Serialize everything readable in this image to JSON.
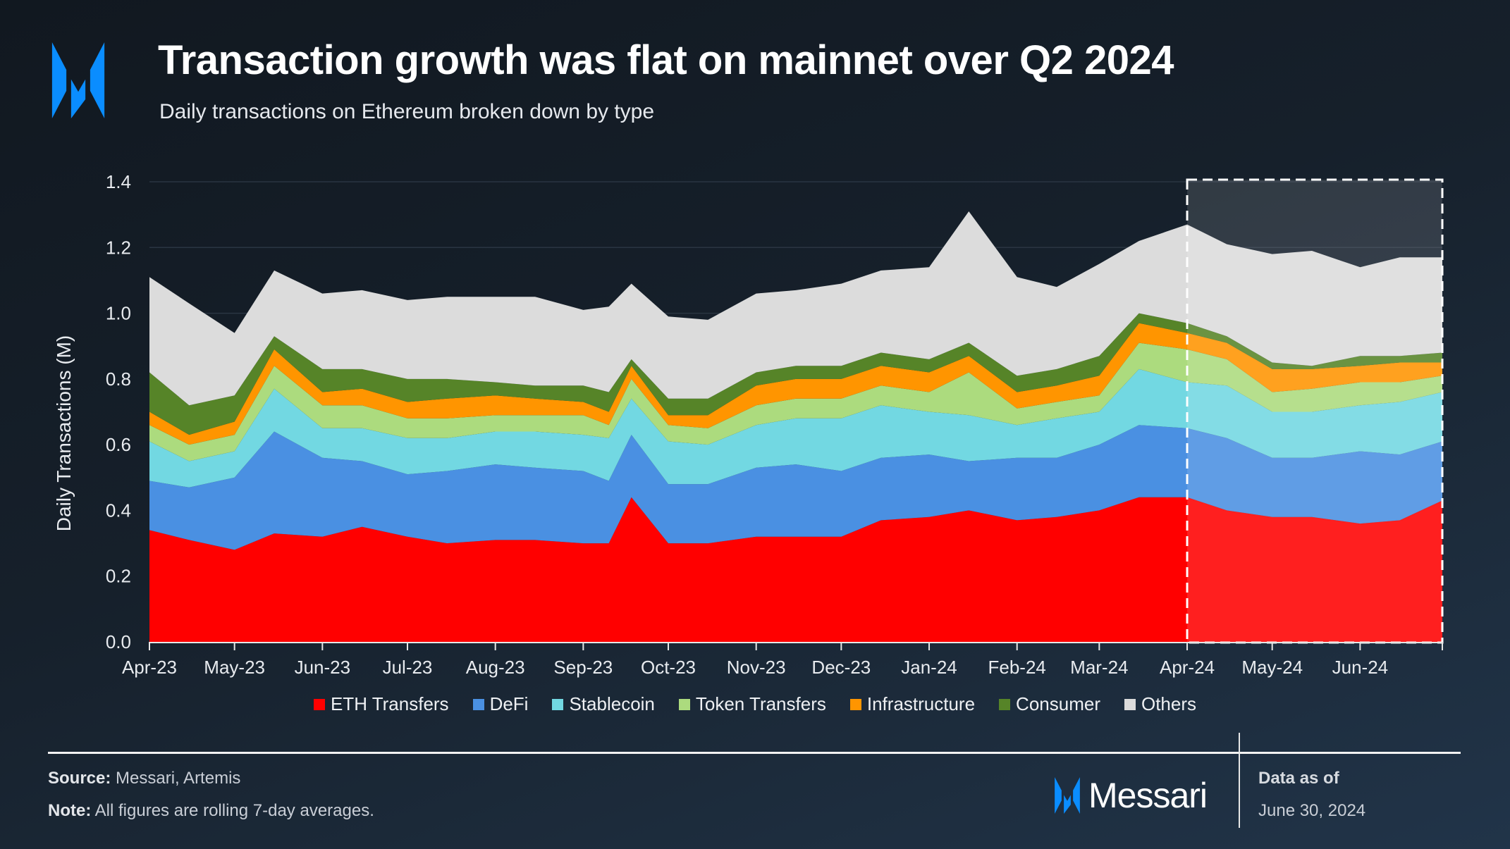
{
  "header": {
    "title": "Transaction growth was flat on mainnet over Q2 2024",
    "subtitle": "Daily transactions on Ethereum broken down by type",
    "logo_color": "#0a8dff"
  },
  "chart_data": {
    "type": "area",
    "stacked": true,
    "title": "Transaction growth was flat on mainnet over Q2 2024",
    "subtitle": "Daily transactions on Ethereum broken down by type",
    "xlabel": "",
    "ylabel": "Daily Transactions (M)",
    "ylim": [
      0,
      1.4
    ],
    "xlim": [
      "2023-04-01",
      "2024-06-30"
    ],
    "yticks": [
      "0.0",
      "0.2",
      "0.4",
      "0.6",
      "0.8",
      "1.0",
      "1.2",
      "1.4"
    ],
    "xticks": [
      {
        "label": "Apr-23",
        "date": "2023-04-01"
      },
      {
        "label": "May-23",
        "date": "2023-05-01"
      },
      {
        "label": "Jun-23",
        "date": "2023-06-01"
      },
      {
        "label": "Jul-23",
        "date": "2023-07-01"
      },
      {
        "label": "Aug-23",
        "date": "2023-08-01"
      },
      {
        "label": "Sep-23",
        "date": "2023-09-01"
      },
      {
        "label": "Oct-23",
        "date": "2023-10-01"
      },
      {
        "label": "Nov-23",
        "date": "2023-11-01"
      },
      {
        "label": "Dec-23",
        "date": "2023-12-01"
      },
      {
        "label": "Jan-24",
        "date": "2024-01-01"
      },
      {
        "label": "Feb-24",
        "date": "2024-02-01"
      },
      {
        "label": "Mar-24",
        "date": "2024-03-01"
      },
      {
        "label": "Apr-24",
        "date": "2024-04-01"
      },
      {
        "label": "May-24",
        "date": "2024-05-01"
      },
      {
        "label": "Jun-24",
        "date": "2024-06-01"
      }
    ],
    "grid": true,
    "legend_position": "bottom",
    "highlight_range": [
      "2024-04-01",
      "2024-06-30"
    ],
    "x": [
      "2023-04-01",
      "2023-04-15",
      "2023-05-01",
      "2023-05-15",
      "2023-06-01",
      "2023-06-15",
      "2023-07-01",
      "2023-07-15",
      "2023-08-01",
      "2023-08-15",
      "2023-09-01",
      "2023-09-10",
      "2023-09-18",
      "2023-10-01",
      "2023-10-15",
      "2023-11-01",
      "2023-11-15",
      "2023-12-01",
      "2023-12-15",
      "2024-01-01",
      "2024-01-15",
      "2024-02-01",
      "2024-02-15",
      "2024-03-01",
      "2024-03-15",
      "2024-04-01",
      "2024-04-15",
      "2024-05-01",
      "2024-05-15",
      "2024-06-01",
      "2024-06-15",
      "2024-06-30"
    ],
    "series": [
      {
        "name": "ETH Transfers",
        "color": "#ff0000",
        "values": [
          0.34,
          0.31,
          0.28,
          0.33,
          0.32,
          0.35,
          0.32,
          0.3,
          0.31,
          0.31,
          0.3,
          0.3,
          0.44,
          0.3,
          0.3,
          0.32,
          0.32,
          0.32,
          0.37,
          0.38,
          0.4,
          0.37,
          0.38,
          0.4,
          0.44,
          0.44,
          0.4,
          0.38,
          0.38,
          0.36,
          0.37,
          0.43
        ]
      },
      {
        "name": "DeFi",
        "color": "#4a90e2",
        "values": [
          0.15,
          0.16,
          0.22,
          0.31,
          0.24,
          0.2,
          0.19,
          0.22,
          0.23,
          0.22,
          0.22,
          0.19,
          0.19,
          0.18,
          0.18,
          0.21,
          0.22,
          0.2,
          0.19,
          0.19,
          0.15,
          0.19,
          0.18,
          0.2,
          0.22,
          0.21,
          0.22,
          0.18,
          0.18,
          0.22,
          0.2,
          0.18
        ]
      },
      {
        "name": "Stablecoin",
        "color": "#72d8e2",
        "values": [
          0.12,
          0.08,
          0.08,
          0.13,
          0.09,
          0.1,
          0.11,
          0.1,
          0.1,
          0.11,
          0.11,
          0.13,
          0.11,
          0.13,
          0.12,
          0.13,
          0.14,
          0.16,
          0.16,
          0.13,
          0.14,
          0.1,
          0.12,
          0.1,
          0.17,
          0.14,
          0.16,
          0.14,
          0.14,
          0.14,
          0.16,
          0.15
        ]
      },
      {
        "name": "Token Transfers",
        "color": "#acdb7e",
        "values": [
          0.05,
          0.05,
          0.05,
          0.07,
          0.07,
          0.07,
          0.06,
          0.06,
          0.05,
          0.05,
          0.06,
          0.04,
          0.06,
          0.05,
          0.05,
          0.06,
          0.06,
          0.06,
          0.06,
          0.06,
          0.13,
          0.05,
          0.05,
          0.05,
          0.08,
          0.1,
          0.08,
          0.06,
          0.07,
          0.07,
          0.06,
          0.05
        ]
      },
      {
        "name": "Infrastructure",
        "color": "#ff9500",
        "values": [
          0.04,
          0.03,
          0.04,
          0.05,
          0.04,
          0.05,
          0.05,
          0.06,
          0.06,
          0.05,
          0.04,
          0.04,
          0.04,
          0.03,
          0.04,
          0.06,
          0.06,
          0.06,
          0.06,
          0.06,
          0.05,
          0.05,
          0.05,
          0.06,
          0.06,
          0.05,
          0.05,
          0.07,
          0.06,
          0.05,
          0.06,
          0.04
        ]
      },
      {
        "name": "Consumer",
        "color": "#568428",
        "values": [
          0.12,
          0.09,
          0.08,
          0.04,
          0.07,
          0.06,
          0.07,
          0.06,
          0.04,
          0.04,
          0.05,
          0.06,
          0.02,
          0.05,
          0.05,
          0.04,
          0.04,
          0.04,
          0.04,
          0.04,
          0.04,
          0.05,
          0.05,
          0.06,
          0.03,
          0.03,
          0.02,
          0.02,
          0.01,
          0.03,
          0.02,
          0.03
        ]
      },
      {
        "name": "Others",
        "color": "#dcdcdc",
        "values": [
          0.29,
          0.31,
          0.19,
          0.2,
          0.23,
          0.24,
          0.24,
          0.25,
          0.26,
          0.27,
          0.23,
          0.26,
          0.23,
          0.25,
          0.24,
          0.24,
          0.23,
          0.25,
          0.25,
          0.28,
          0.4,
          0.3,
          0.25,
          0.28,
          0.22,
          0.3,
          0.28,
          0.33,
          0.35,
          0.27,
          0.3,
          0.29
        ]
      }
    ]
  },
  "footer": {
    "source_label": "Source:",
    "source_text": "Messari, Artemis",
    "note_label": "Note:",
    "note_text": "All figures are rolling 7-day averages.",
    "brand": "Messari",
    "asof_label": "Data as of",
    "asof_date": "June 30, 2024"
  }
}
